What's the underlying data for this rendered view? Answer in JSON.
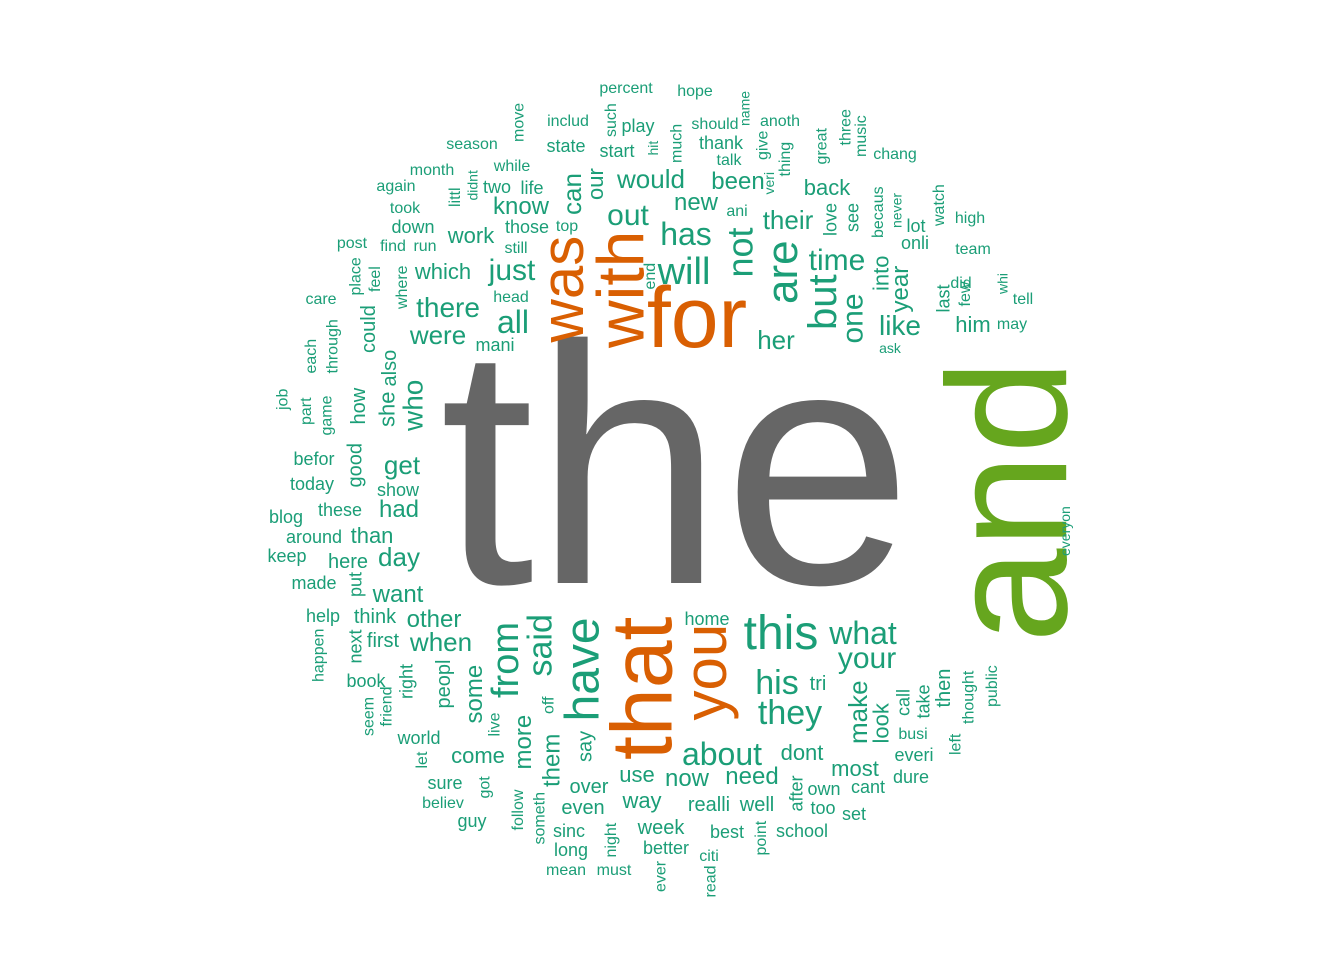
{
  "colors": {
    "background": "#ffffff",
    "gray": "#666666",
    "green": "#66a61e",
    "orange": "#d95f02",
    "teal": "#1b9e77"
  },
  "words": [
    {
      "text": "the",
      "color": "gray"
    },
    {
      "text": "and",
      "color": "green"
    },
    {
      "text": "for",
      "color": "orange"
    },
    {
      "text": "that",
      "color": "orange"
    },
    {
      "text": "with",
      "color": "orange"
    },
    {
      "text": "was",
      "color": "orange"
    },
    {
      "text": "you",
      "color": "orange"
    },
    {
      "text": "have",
      "color": "teal"
    },
    {
      "text": "this",
      "color": "teal"
    },
    {
      "text": "are",
      "color": "teal"
    },
    {
      "text": "but",
      "color": "teal"
    },
    {
      "text": "from",
      "color": "teal"
    },
    {
      "text": "will",
      "color": "teal"
    },
    {
      "text": "not",
      "color": "teal"
    },
    {
      "text": "said",
      "color": "teal"
    },
    {
      "text": "his",
      "color": "teal"
    },
    {
      "text": "they",
      "color": "teal"
    },
    {
      "text": "has",
      "color": "teal"
    },
    {
      "text": "what",
      "color": "teal"
    },
    {
      "text": "your",
      "color": "teal"
    },
    {
      "text": "about",
      "color": "teal"
    },
    {
      "text": "one",
      "color": "teal"
    },
    {
      "text": "all",
      "color": "teal"
    },
    {
      "text": "out",
      "color": "teal"
    },
    {
      "text": "time",
      "color": "teal"
    },
    {
      "text": "just",
      "color": "teal"
    },
    {
      "text": "there",
      "color": "teal"
    },
    {
      "text": "were",
      "color": "teal"
    },
    {
      "text": "would",
      "color": "teal"
    },
    {
      "text": "like",
      "color": "teal"
    },
    {
      "text": "her",
      "color": "teal"
    },
    {
      "text": "more",
      "color": "teal"
    },
    {
      "text": "some",
      "color": "teal"
    },
    {
      "text": "their",
      "color": "teal"
    },
    {
      "text": "when",
      "color": "teal"
    },
    {
      "text": "can",
      "color": "teal"
    },
    {
      "text": "who",
      "color": "teal"
    },
    {
      "text": "get",
      "color": "teal"
    },
    {
      "text": "make",
      "color": "teal"
    },
    {
      "text": "year",
      "color": "teal"
    },
    {
      "text": "know",
      "color": "teal"
    },
    {
      "text": "new",
      "color": "teal"
    },
    {
      "text": "been",
      "color": "teal"
    },
    {
      "text": "them",
      "color": "teal"
    },
    {
      "text": "day",
      "color": "teal"
    },
    {
      "text": "had",
      "color": "teal"
    },
    {
      "text": "want",
      "color": "teal"
    },
    {
      "text": "other",
      "color": "teal"
    },
    {
      "text": "now",
      "color": "teal"
    },
    {
      "text": "need",
      "color": "teal"
    },
    {
      "text": "come",
      "color": "teal"
    },
    {
      "text": "use",
      "color": "teal"
    },
    {
      "text": "dont",
      "color": "teal"
    },
    {
      "text": "most",
      "color": "teal"
    },
    {
      "text": "look",
      "color": "teal"
    },
    {
      "text": "work",
      "color": "teal"
    },
    {
      "text": "which",
      "color": "teal"
    },
    {
      "text": "back",
      "color": "teal"
    },
    {
      "text": "peopl",
      "color": "teal"
    },
    {
      "text": "think",
      "color": "teal"
    },
    {
      "text": "first",
      "color": "teal"
    },
    {
      "text": "she",
      "color": "teal"
    },
    {
      "text": "also",
      "color": "teal"
    },
    {
      "text": "how",
      "color": "teal"
    },
    {
      "text": "could",
      "color": "teal"
    },
    {
      "text": "good",
      "color": "teal"
    },
    {
      "text": "into",
      "color": "teal"
    },
    {
      "text": "our",
      "color": "teal"
    },
    {
      "text": "him",
      "color": "teal"
    },
    {
      "text": "than",
      "color": "teal"
    },
    {
      "text": "here",
      "color": "teal"
    },
    {
      "text": "over",
      "color": "teal"
    },
    {
      "text": "way",
      "color": "teal"
    },
    {
      "text": "even",
      "color": "teal"
    },
    {
      "text": "realli",
      "color": "teal"
    },
    {
      "text": "well",
      "color": "teal"
    },
    {
      "text": "say",
      "color": "teal"
    },
    {
      "text": "these",
      "color": "teal"
    },
    {
      "text": "around",
      "color": "teal"
    },
    {
      "text": "today",
      "color": "teal"
    },
    {
      "text": "befor",
      "color": "teal"
    },
    {
      "text": "blog",
      "color": "teal"
    },
    {
      "text": "keep",
      "color": "teal"
    },
    {
      "text": "made",
      "color": "teal"
    },
    {
      "text": "put",
      "color": "teal"
    },
    {
      "text": "help",
      "color": "teal"
    },
    {
      "text": "next",
      "color": "teal"
    },
    {
      "text": "right",
      "color": "teal"
    },
    {
      "text": "book",
      "color": "teal"
    },
    {
      "text": "seem",
      "color": "teal"
    },
    {
      "text": "friend",
      "color": "teal"
    },
    {
      "text": "happen",
      "color": "teal"
    },
    {
      "text": "world",
      "color": "teal"
    },
    {
      "text": "let",
      "color": "teal"
    },
    {
      "text": "sure",
      "color": "teal"
    },
    {
      "text": "believ",
      "color": "teal"
    },
    {
      "text": "guy",
      "color": "teal"
    },
    {
      "text": "got",
      "color": "teal"
    },
    {
      "text": "live",
      "color": "teal"
    },
    {
      "text": "follow",
      "color": "teal"
    },
    {
      "text": "someth",
      "color": "teal"
    },
    {
      "text": "sinc",
      "color": "teal"
    },
    {
      "text": "long",
      "color": "teal"
    },
    {
      "text": "mean",
      "color": "teal"
    },
    {
      "text": "must",
      "color": "teal"
    },
    {
      "text": "night",
      "color": "teal"
    },
    {
      "text": "week",
      "color": "teal"
    },
    {
      "text": "better",
      "color": "teal"
    },
    {
      "text": "ever",
      "color": "teal"
    },
    {
      "text": "citi",
      "color": "teal"
    },
    {
      "text": "read",
      "color": "teal"
    },
    {
      "text": "best",
      "color": "teal"
    },
    {
      "text": "point",
      "color": "teal"
    },
    {
      "text": "school",
      "color": "teal"
    },
    {
      "text": "after",
      "color": "teal"
    },
    {
      "text": "own",
      "color": "teal"
    },
    {
      "text": "too",
      "color": "teal"
    },
    {
      "text": "cant",
      "color": "teal"
    },
    {
      "text": "set",
      "color": "teal"
    },
    {
      "text": "dure",
      "color": "teal"
    },
    {
      "text": "everi",
      "color": "teal"
    },
    {
      "text": "busi",
      "color": "teal"
    },
    {
      "text": "call",
      "color": "teal"
    },
    {
      "text": "take",
      "color": "teal"
    },
    {
      "text": "then",
      "color": "teal"
    },
    {
      "text": "left",
      "color": "teal"
    },
    {
      "text": "thought",
      "color": "teal"
    },
    {
      "text": "public",
      "color": "teal"
    },
    {
      "text": "tri",
      "color": "teal"
    },
    {
      "text": "home",
      "color": "teal"
    },
    {
      "text": "off",
      "color": "teal"
    },
    {
      "text": "everyon",
      "color": "teal"
    },
    {
      "text": "mani",
      "color": "teal"
    },
    {
      "text": "head",
      "color": "teal"
    },
    {
      "text": "end",
      "color": "teal"
    },
    {
      "text": "still",
      "color": "teal"
    },
    {
      "text": "those",
      "color": "teal"
    },
    {
      "text": "top",
      "color": "teal"
    },
    {
      "text": "two",
      "color": "teal"
    },
    {
      "text": "life",
      "color": "teal"
    },
    {
      "text": "while",
      "color": "teal"
    },
    {
      "text": "littl",
      "color": "teal"
    },
    {
      "text": "didnt",
      "color": "teal"
    },
    {
      "text": "month",
      "color": "teal"
    },
    {
      "text": "season",
      "color": "teal"
    },
    {
      "text": "again",
      "color": "teal"
    },
    {
      "text": "took",
      "color": "teal"
    },
    {
      "text": "down",
      "color": "teal"
    },
    {
      "text": "find",
      "color": "teal"
    },
    {
      "text": "run",
      "color": "teal"
    },
    {
      "text": "post",
      "color": "teal"
    },
    {
      "text": "place",
      "color": "teal"
    },
    {
      "text": "feel",
      "color": "teal"
    },
    {
      "text": "where",
      "color": "teal"
    },
    {
      "text": "care",
      "color": "teal"
    },
    {
      "text": "through",
      "color": "teal"
    },
    {
      "text": "each",
      "color": "teal"
    },
    {
      "text": "job",
      "color": "teal"
    },
    {
      "text": "part",
      "color": "teal"
    },
    {
      "text": "game",
      "color": "teal"
    },
    {
      "text": "show",
      "color": "teal"
    },
    {
      "text": "move",
      "color": "teal"
    },
    {
      "text": "includ",
      "color": "teal"
    },
    {
      "text": "state",
      "color": "teal"
    },
    {
      "text": "start",
      "color": "teal"
    },
    {
      "text": "such",
      "color": "teal"
    },
    {
      "text": "play",
      "color": "teal"
    },
    {
      "text": "hit",
      "color": "teal"
    },
    {
      "text": "percent",
      "color": "teal"
    },
    {
      "text": "hope",
      "color": "teal"
    },
    {
      "text": "much",
      "color": "teal"
    },
    {
      "text": "should",
      "color": "teal"
    },
    {
      "text": "thank",
      "color": "teal"
    },
    {
      "text": "talk",
      "color": "teal"
    },
    {
      "text": "name",
      "color": "teal"
    },
    {
      "text": "give",
      "color": "teal"
    },
    {
      "text": "veri",
      "color": "teal"
    },
    {
      "text": "anoth",
      "color": "teal"
    },
    {
      "text": "thing",
      "color": "teal"
    },
    {
      "text": "great",
      "color": "teal"
    },
    {
      "text": "three",
      "color": "teal"
    },
    {
      "text": "music",
      "color": "teal"
    },
    {
      "text": "chang",
      "color": "teal"
    },
    {
      "text": "love",
      "color": "teal"
    },
    {
      "text": "see",
      "color": "teal"
    },
    {
      "text": "becaus",
      "color": "teal"
    },
    {
      "text": "never",
      "color": "teal"
    },
    {
      "text": "watch",
      "color": "teal"
    },
    {
      "text": "ani",
      "color": "teal"
    },
    {
      "text": "lot",
      "color": "teal"
    },
    {
      "text": "high",
      "color": "teal"
    },
    {
      "text": "onli",
      "color": "teal"
    },
    {
      "text": "team",
      "color": "teal"
    },
    {
      "text": "last",
      "color": "teal"
    },
    {
      "text": "did",
      "color": "teal"
    },
    {
      "text": "few",
      "color": "teal"
    },
    {
      "text": "whi",
      "color": "teal"
    },
    {
      "text": "tell",
      "color": "teal"
    },
    {
      "text": "may",
      "color": "teal"
    },
    {
      "text": "ask",
      "color": "teal"
    }
  ]
}
